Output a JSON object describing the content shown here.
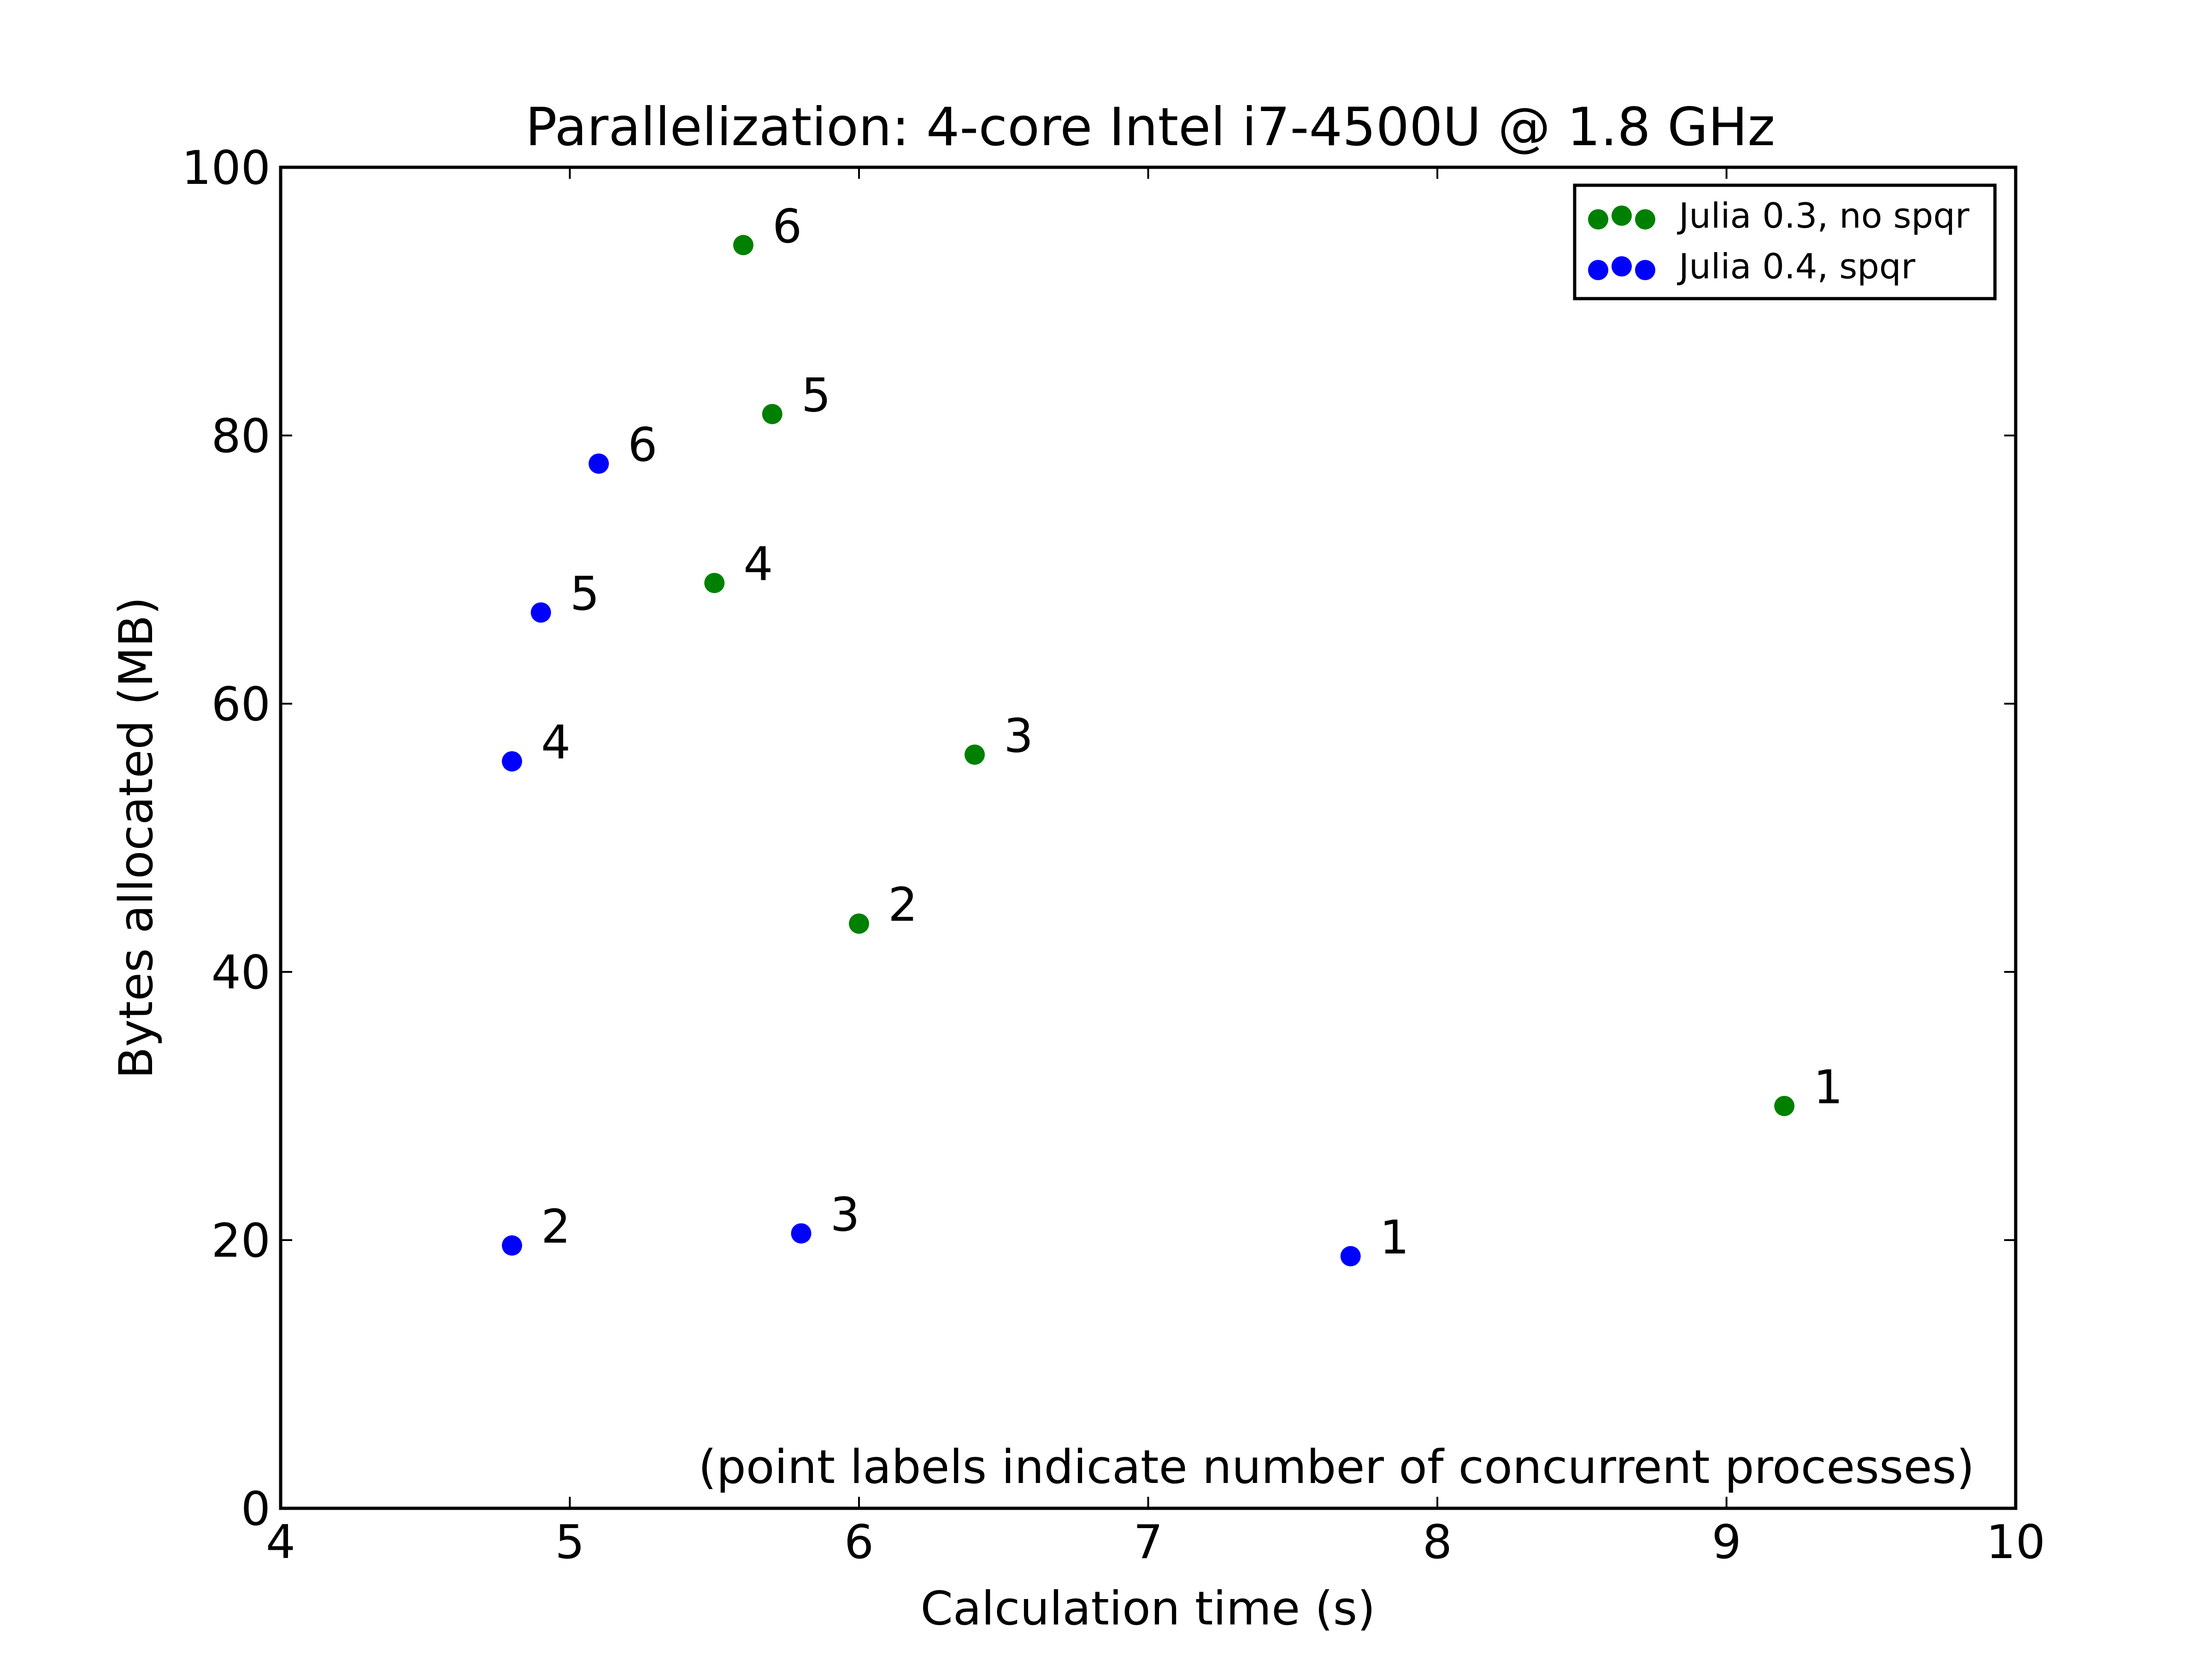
{
  "chart_data": {
    "type": "scatter",
    "title": "Parallelization: 4-core Intel i7-4500U @ 1.8 GHz",
    "xlabel": "Calculation time (s)",
    "ylabel": "Bytes allocated (MB)",
    "xlim": [
      4,
      10
    ],
    "ylim": [
      0,
      100
    ],
    "xticks": [
      4,
      5,
      6,
      7,
      8,
      9,
      10
    ],
    "yticks": [
      0,
      20,
      40,
      60,
      80,
      100
    ],
    "grid": false,
    "legend_position": "top-right",
    "annotation": "(point labels indicate number of concurrent processes)",
    "series": [
      {
        "name": "Julia 0.3, no spqr",
        "color": "#008000",
        "points": [
          {
            "x": 9.2,
            "y": 30.0,
            "label": "1"
          },
          {
            "x": 6.0,
            "y": 43.6,
            "label": "2"
          },
          {
            "x": 6.4,
            "y": 56.2,
            "label": "3"
          },
          {
            "x": 5.5,
            "y": 69.0,
            "label": "4"
          },
          {
            "x": 5.7,
            "y": 81.6,
            "label": "5"
          },
          {
            "x": 5.6,
            "y": 94.2,
            "label": "6"
          }
        ]
      },
      {
        "name": "Julia 0.4, spqr",
        "color": "#0000ff",
        "points": [
          {
            "x": 7.7,
            "y": 18.8,
            "label": "1"
          },
          {
            "x": 4.8,
            "y": 19.6,
            "label": "2"
          },
          {
            "x": 5.8,
            "y": 20.5,
            "label": "3"
          },
          {
            "x": 4.8,
            "y": 55.7,
            "label": "4"
          },
          {
            "x": 4.9,
            "y": 66.8,
            "label": "5"
          },
          {
            "x": 5.1,
            "y": 77.9,
            "label": "6"
          }
        ]
      }
    ]
  }
}
